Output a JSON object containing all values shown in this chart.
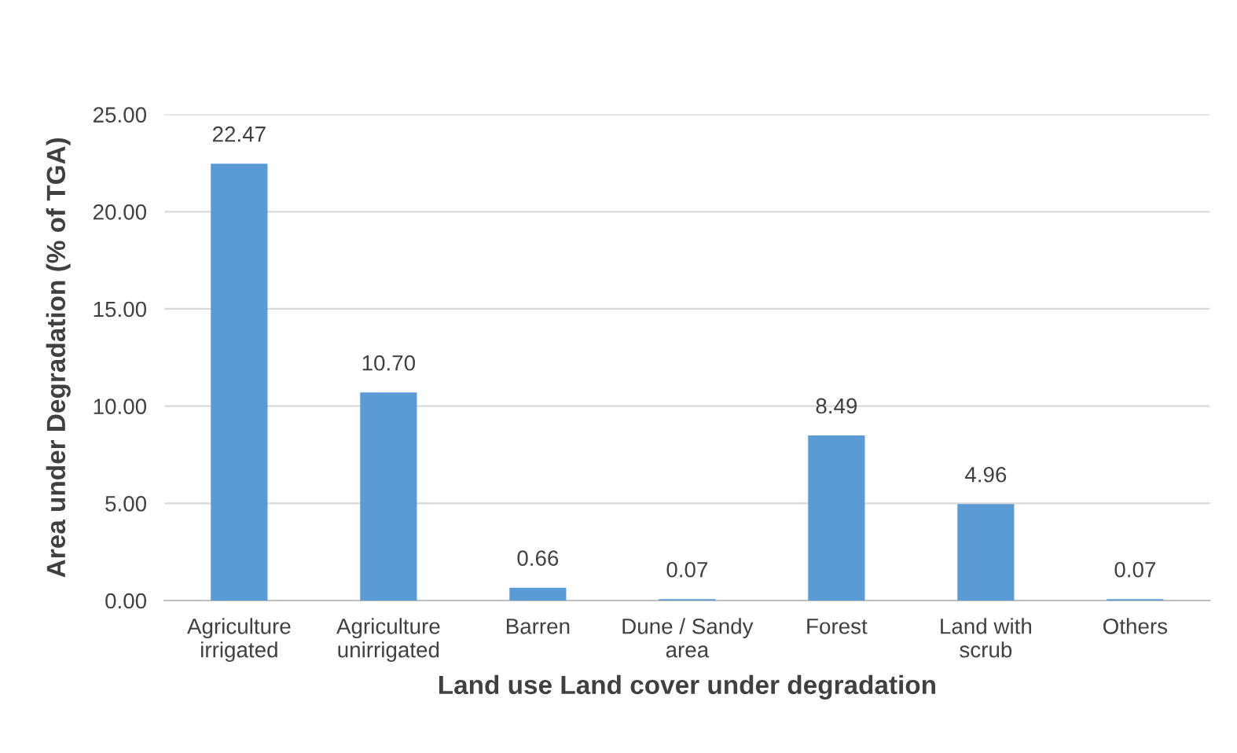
{
  "chart_data": {
    "type": "bar",
    "xlabel": "Land use Land cover under degradation",
    "ylabel": "Area under Degradation (% of TGA)",
    "categories": [
      "Agriculture\nirrigated",
      "Agriculture\nunirrigated",
      "Barren",
      "Dune / Sandy\narea",
      "Forest",
      "Land with\nscrub",
      "Others"
    ],
    "values": [
      22.47,
      10.7,
      0.66,
      0.07,
      8.49,
      4.96,
      0.07
    ],
    "value_labels": [
      "22.47",
      "10.70",
      "0.66",
      "0.07",
      "8.49",
      "4.96",
      "0.07"
    ],
    "color": "#5b9bd5",
    "ylim": [
      0,
      25
    ],
    "yticks": [
      {
        "value": 0,
        "label": "0.00"
      },
      {
        "value": 5,
        "label": "5.00"
      },
      {
        "value": 10,
        "label": "10.00"
      },
      {
        "value": 15,
        "label": "15.00"
      },
      {
        "value": 20,
        "label": "20.00"
      },
      {
        "value": 25,
        "label": "25.00"
      }
    ],
    "grid": "y",
    "legend": false
  }
}
